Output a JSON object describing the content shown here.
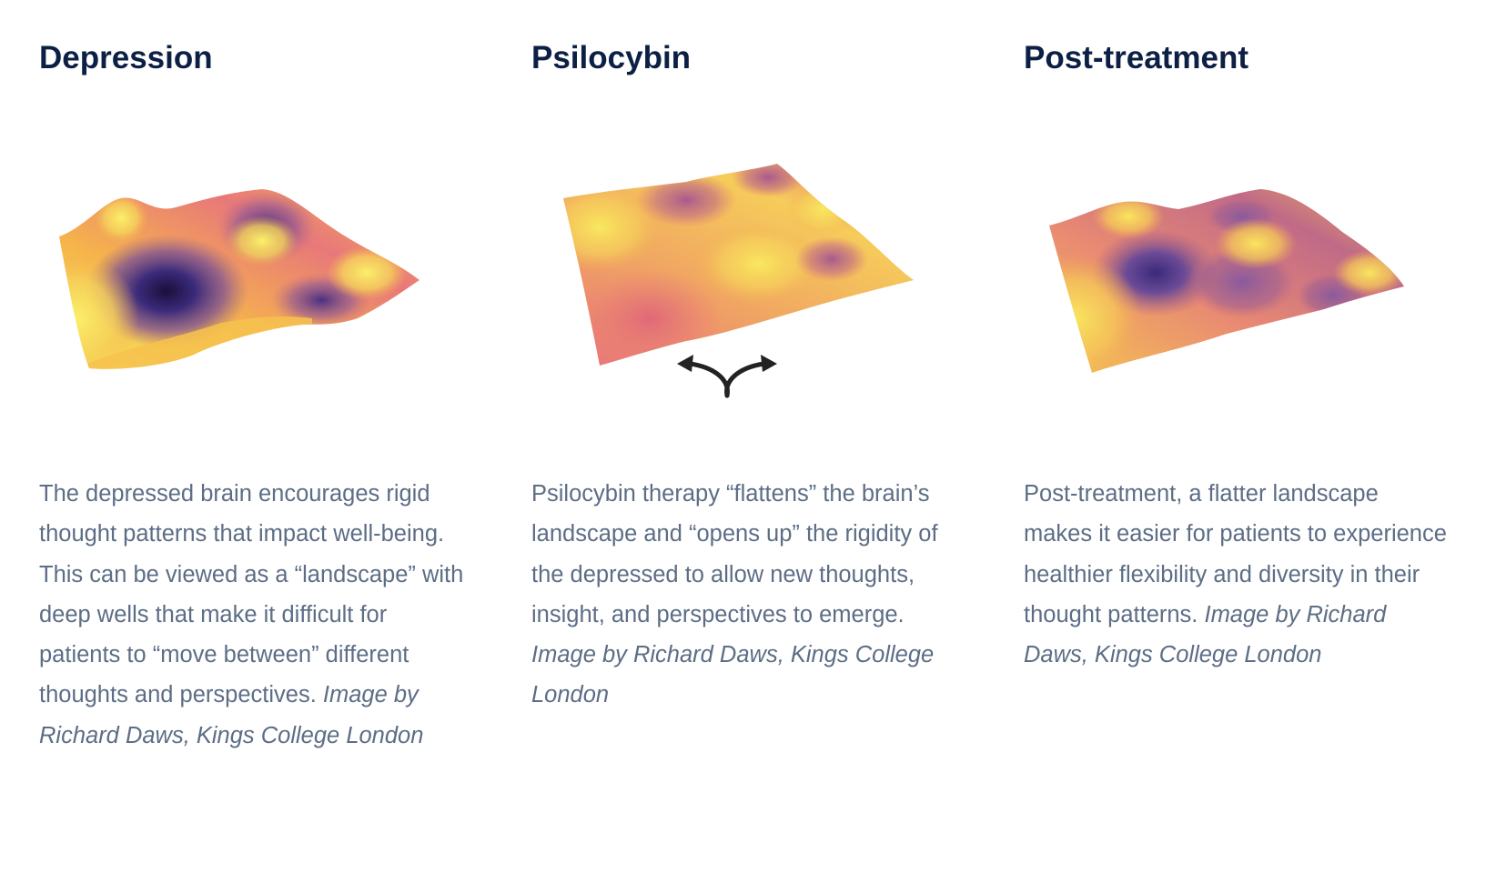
{
  "panels": [
    {
      "title": "Depression",
      "caption": "The depressed brain encourages rigid thought patterns that impact well-being. This can be viewed as a “landscape” with deep wells that make it difficult for patients to “move between” different thoughts and perspectives.",
      "credit": "Image by Richard Daws, Kings College London"
    },
    {
      "title": "Psilocybin",
      "caption": "Psilocybin therapy “flattens” the brain’s landscape and “opens up” the rigidity of the depressed to allow new thoughts, insight, and perspectives to emerge.",
      "credit": "Image by Richard Daws, Kings College London"
    },
    {
      "title": "Post-treatment",
      "caption": "Post-treatment, a flatter landscape makes it easier for patients to experience healthier flexibility and diversity in their thought patterns.",
      "credit": "Image by Richard Daws, Kings College London"
    }
  ],
  "colors": {
    "title": "#0c1f44",
    "body": "#5c6d85",
    "surface_high": "#f8e45c",
    "surface_mid": "#e8727a",
    "surface_low": "#2a1a5e"
  },
  "icons": {
    "branch_arrows": "split-arrows-icon"
  }
}
